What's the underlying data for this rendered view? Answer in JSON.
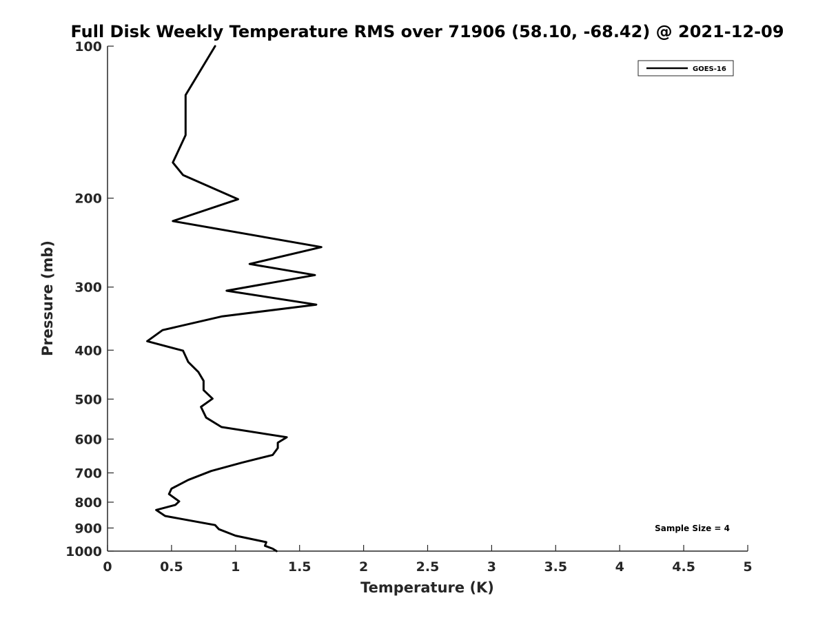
{
  "chart_data": {
    "type": "line",
    "title": "Full Disk Weekly Temperature RMS over 71906 (58.10, -68.42) @ 2021-12-09",
    "xlabel": "Temperature (K)",
    "ylabel": "Pressure (mb)",
    "xlim": [
      0,
      5
    ],
    "ylim": [
      1000,
      100
    ],
    "y_scale": "log",
    "y_reversed": true,
    "x_ticks": [
      "0",
      "0.5",
      "1",
      "1.5",
      "2",
      "2.5",
      "3",
      "3.5",
      "4",
      "4.5",
      "5"
    ],
    "y_ticks": [
      "100",
      "200",
      "300",
      "400",
      "500",
      "600",
      "700",
      "800",
      "900",
      "1000"
    ],
    "grid": false,
    "legend_position": "top-right",
    "annotation": "Sample Size = 4",
    "series": [
      {
        "name": "GOES-16",
        "color": "#000000",
        "points": [
          [
            0.84,
            100
          ],
          [
            0.61,
            125
          ],
          [
            0.61,
            150
          ],
          [
            0.51,
            170
          ],
          [
            0.59,
            180
          ],
          [
            1.02,
            201
          ],
          [
            0.51,
            222
          ],
          [
            1.67,
            250
          ],
          [
            1.11,
            270
          ],
          [
            1.62,
            284
          ],
          [
            0.93,
            305
          ],
          [
            1.63,
            325
          ],
          [
            0.89,
            343
          ],
          [
            0.43,
            365
          ],
          [
            0.31,
            384
          ],
          [
            0.59,
            401
          ],
          [
            0.63,
            422
          ],
          [
            0.71,
            442
          ],
          [
            0.75,
            460
          ],
          [
            0.75,
            480
          ],
          [
            0.82,
            499
          ],
          [
            0.73,
            518
          ],
          [
            0.77,
            544
          ],
          [
            0.89,
            568
          ],
          [
            1.4,
            595
          ],
          [
            1.33,
            610
          ],
          [
            1.33,
            625
          ],
          [
            1.29,
            645
          ],
          [
            1.05,
            668
          ],
          [
            0.81,
            694
          ],
          [
            0.63,
            723
          ],
          [
            0.5,
            752
          ],
          [
            0.48,
            771
          ],
          [
            0.56,
            797
          ],
          [
            0.53,
            810
          ],
          [
            0.38,
            829
          ],
          [
            0.45,
            852
          ],
          [
            0.84,
            888
          ],
          [
            0.87,
            905
          ],
          [
            1.0,
            932
          ],
          [
            1.24,
            960
          ],
          [
            1.23,
            976
          ],
          [
            1.29,
            989
          ],
          [
            1.32,
            1000
          ]
        ]
      }
    ]
  }
}
